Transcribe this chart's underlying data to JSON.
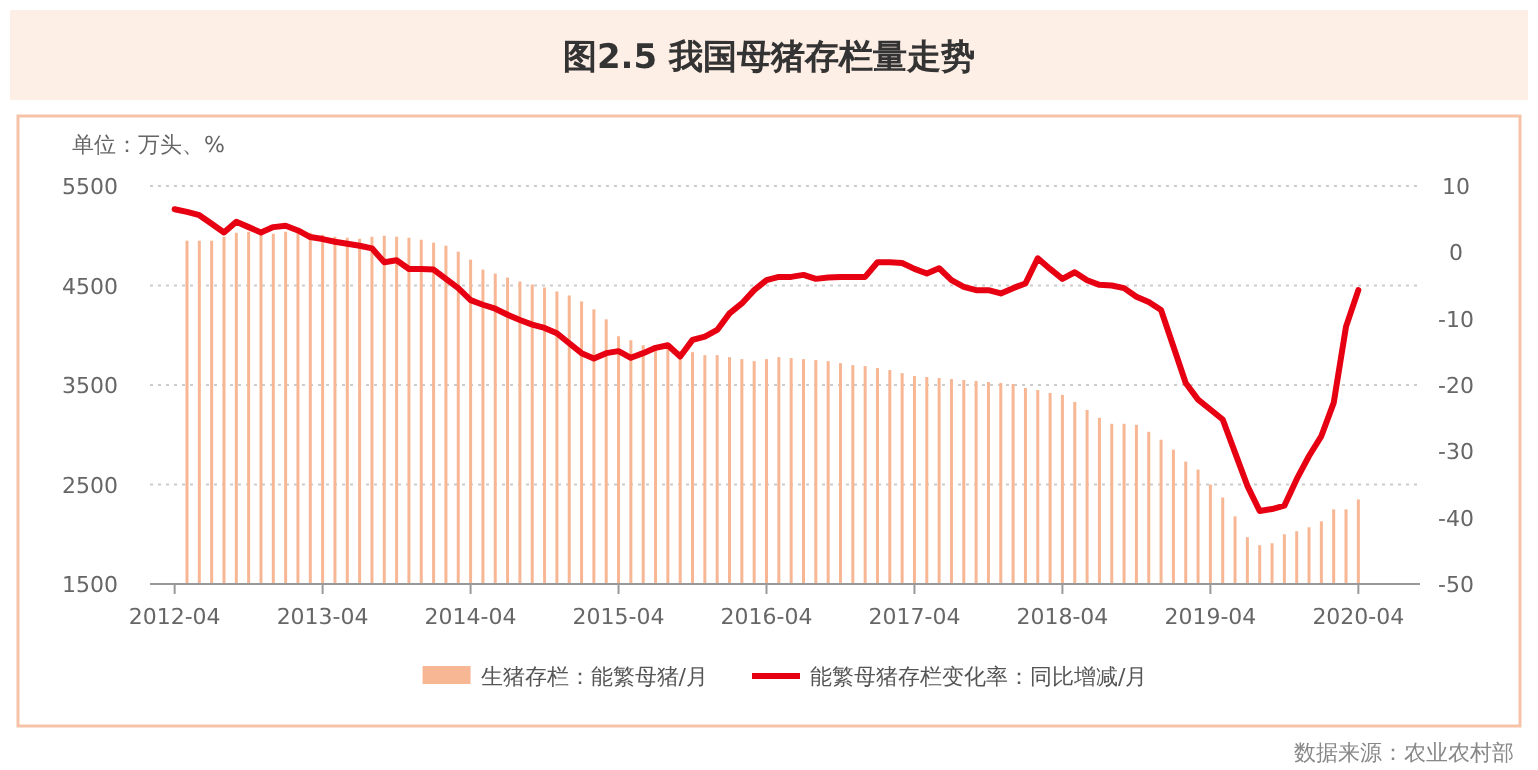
{
  "chart_data": {
    "type": "bar",
    "title": "图2.5 我国母猪存栏量走势",
    "ylabel": "单位：万头、%",
    "annotations": [
      "数据来源：农业农村部"
    ],
    "x": [
      "2012-04",
      "2012-05",
      "2012-06",
      "2012-07",
      "2012-08",
      "2012-09",
      "2012-10",
      "2012-11",
      "2012-12",
      "2013-01",
      "2013-02",
      "2013-03",
      "2013-04",
      "2013-05",
      "2013-06",
      "2013-07",
      "2013-08",
      "2013-09",
      "2013-10",
      "2013-11",
      "2013-12",
      "2014-01",
      "2014-02",
      "2014-03",
      "2014-04",
      "2014-05",
      "2014-06",
      "2014-07",
      "2014-08",
      "2014-09",
      "2014-10",
      "2014-11",
      "2014-12",
      "2015-01",
      "2015-02",
      "2015-03",
      "2015-04",
      "2015-05",
      "2015-06",
      "2015-07",
      "2015-08",
      "2015-09",
      "2015-10",
      "2015-11",
      "2015-12",
      "2016-01",
      "2016-02",
      "2016-03",
      "2016-04",
      "2016-05",
      "2016-06",
      "2016-07",
      "2016-08",
      "2016-09",
      "2016-10",
      "2016-11",
      "2016-12",
      "2017-01",
      "2017-02",
      "2017-03",
      "2017-04",
      "2017-05",
      "2017-06",
      "2017-07",
      "2017-08",
      "2017-09",
      "2017-10",
      "2017-11",
      "2017-12",
      "2018-01",
      "2018-02",
      "2018-03",
      "2018-04",
      "2018-05",
      "2018-06",
      "2018-07",
      "2018-08",
      "2018-09",
      "2018-10",
      "2018-11",
      "2018-12",
      "2019-01",
      "2019-02",
      "2019-03",
      "2019-04",
      "2019-05",
      "2019-06",
      "2019-07",
      "2019-08",
      "2019-09",
      "2019-10",
      "2019-11",
      "2019-12",
      "2020-01",
      "2020-02",
      "2020-03",
      "2020-04"
    ],
    "series": [
      {
        "name": "生猪存栏：能繁母猪/月",
        "color": "#f7b795",
        "values": [
          null,
          4950,
          4950,
          4950,
          4990,
          5030,
          5040,
          5030,
          5020,
          5040,
          5060,
          5030,
          5010,
          4990,
          4980,
          4970,
          4990,
          5000,
          4990,
          4980,
          4960,
          4930,
          4900,
          4840,
          4760,
          4660,
          4620,
          4580,
          4540,
          4510,
          4480,
          4440,
          4400,
          4340,
          4260,
          4160,
          3990,
          3950,
          3900,
          3880,
          3860,
          3840,
          3830,
          3800,
          3800,
          3780,
          3760,
          3740,
          3760,
          3780,
          3770,
          3760,
          3750,
          3740,
          3720,
          3700,
          3690,
          3670,
          3650,
          3620,
          3590,
          3580,
          3570,
          3560,
          3550,
          3540,
          3530,
          3520,
          3510,
          3470,
          3450,
          3420,
          3400,
          3330,
          3250,
          3170,
          3110,
          3110,
          3100,
          3030,
          2950,
          2850,
          2730,
          2650,
          2500,
          2370,
          2180,
          1970,
          1890,
          1910,
          2000,
          2030,
          2070,
          2130,
          2250,
          2250,
          2350
        ]
      },
      {
        "name": "能繁母猪存栏变化率：同比增减/月",
        "type": "line",
        "axis": "y2",
        "color": "#e60012",
        "values": [
          6.5,
          6.1,
          5.6,
          4.3,
          3.0,
          4.6,
          3.8,
          3.0,
          3.8,
          4.0,
          3.3,
          2.3,
          2.0,
          1.6,
          1.3,
          1.0,
          0.6,
          -1.5,
          -1.2,
          -2.5,
          -2.5,
          -2.6,
          -4.0,
          -5.4,
          -7.2,
          -7.9,
          -8.5,
          -9.4,
          -10.2,
          -10.9,
          -11.4,
          -12.2,
          -13.7,
          -15.2,
          -16.0,
          -15.2,
          -14.9,
          -15.9,
          -15.2,
          -14.4,
          -14.0,
          -15.7,
          -13.2,
          -12.7,
          -11.7,
          -9.2,
          -7.7,
          -5.7,
          -4.2,
          -3.7,
          -3.7,
          -3.4,
          -4.0,
          -3.8,
          -3.7,
          -3.7,
          -3.7,
          -1.5,
          -1.5,
          -1.6,
          -2.5,
          -3.2,
          -2.4,
          -4.2,
          -5.2,
          -5.7,
          -5.7,
          -6.2,
          -5.4,
          -4.7,
          -0.9,
          -2.5,
          -4.0,
          -3.0,
          -4.2,
          -4.9,
          -5.0,
          -5.4,
          -6.7,
          -7.5,
          -8.7,
          -14.2,
          -19.7,
          -22.2,
          -23.7,
          -25.2,
          -30.2,
          -35.2,
          -39.0,
          -38.7,
          -38.2,
          -34.2,
          -30.7,
          -27.7,
          -22.7,
          -11.2,
          -5.7
        ]
      }
    ],
    "xlim": [
      "2012-02",
      "2020-09"
    ],
    "xticks": [
      "2012-04",
      "2013-04",
      "2014-04",
      "2015-04",
      "2016-04",
      "2017-04",
      "2018-04",
      "2019-04",
      "2020-04"
    ],
    "ylim": [
      1500,
      5500
    ],
    "yticks": [
      1500,
      2500,
      3500,
      4500,
      5500
    ],
    "y2lim": [
      -50,
      10
    ],
    "y2ticks": [
      -50,
      -40,
      -30,
      -20,
      -10,
      0,
      10
    ],
    "grid": "y",
    "legend": "bottom"
  }
}
